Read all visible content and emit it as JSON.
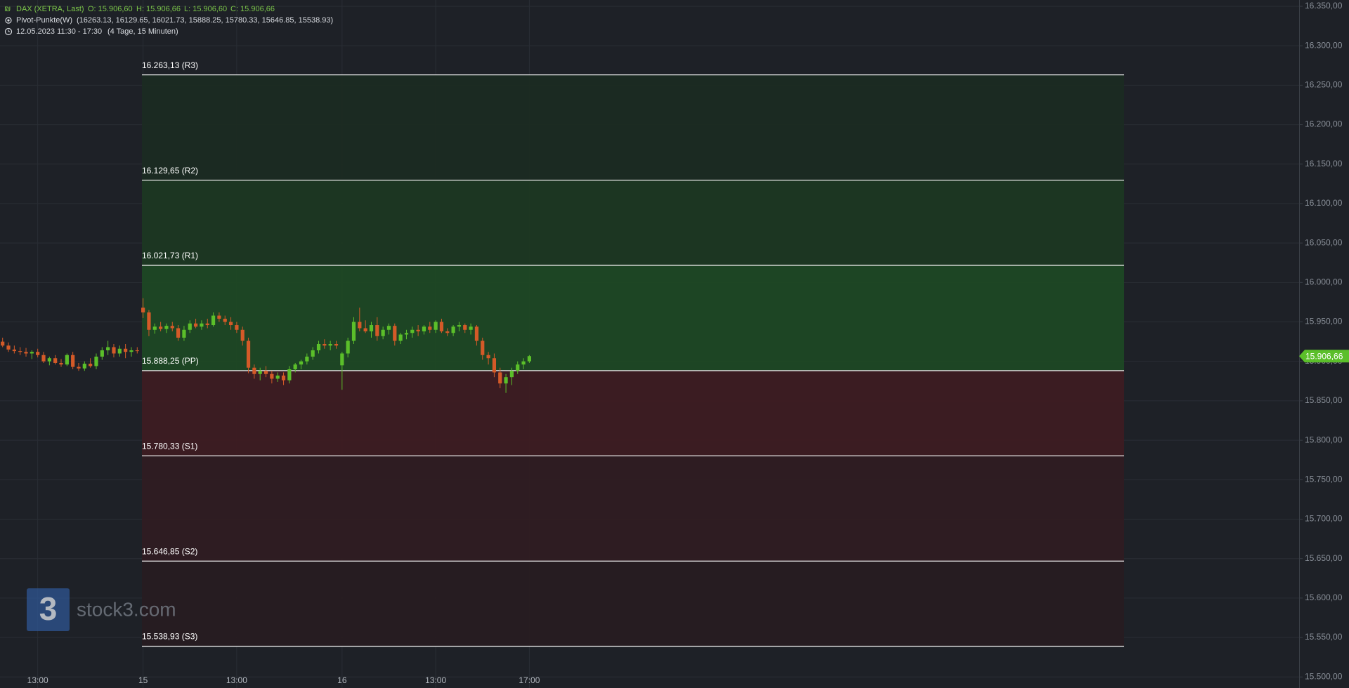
{
  "header": {
    "symbol": "DAX (XETRA, Last)",
    "ohlc": [
      "O: 15.906,60",
      "H: 15.906,66",
      "L: 15.906,60",
      "C: 15.906,66"
    ],
    "indicator": "Pivot-Punkte(W)",
    "indicator_values": "(16263.13,  16129.65,  16021.73,  15888.25,  15780.33,  15646.85,  15538.93)",
    "range": "12.05.2023 11:30 - 17:30",
    "range_info": "(4 Tage, 15 Minuten)"
  },
  "watermark": {
    "logo": "3",
    "text": "stock3.com"
  },
  "chart_data": {
    "type": "candlestick",
    "up_color": "#5bbf2a",
    "down_color": "#d45a28",
    "ylim": [
      15486,
      16358
    ],
    "yticks": [
      {
        "value": 15500,
        "label": "15.500,00"
      },
      {
        "value": 15550,
        "label": "15.550,00"
      },
      {
        "value": 15600,
        "label": "15.600,00"
      },
      {
        "value": 15650,
        "label": "15.650,00"
      },
      {
        "value": 15700,
        "label": "15.700,00"
      },
      {
        "value": 15750,
        "label": "15.750,00"
      },
      {
        "value": 15800,
        "label": "15.800,00"
      },
      {
        "value": 15850,
        "label": "15.850,00"
      },
      {
        "value": 15900,
        "label": "15.900,00"
      },
      {
        "value": 15950,
        "label": "15.950,00"
      },
      {
        "value": 16000,
        "label": "16.000,00"
      },
      {
        "value": 16050,
        "label": "16.050,00"
      },
      {
        "value": 16100,
        "label": "16.100,00"
      },
      {
        "value": 16150,
        "label": "16.150,00"
      },
      {
        "value": 16200,
        "label": "16.200,00"
      },
      {
        "value": 16250,
        "label": "16.250,00"
      },
      {
        "value": 16300,
        "label": "16.300,00"
      },
      {
        "value": 16350,
        "label": "16.350,00"
      }
    ],
    "grid": true,
    "last_price": {
      "value": 15906.66,
      "label": "15.906,66",
      "color": "#5bbf2a"
    },
    "pivots": [
      {
        "value": 16263.13,
        "label": "16.263,13 (R3)"
      },
      {
        "value": 16129.65,
        "label": "16.129,65 (R2)"
      },
      {
        "value": 16021.73,
        "label": "16.021,73 (R1)"
      },
      {
        "value": 15888.25,
        "label": "15.888,25 (PP)"
      },
      {
        "value": 15780.33,
        "label": "15.780,33 (S1)"
      },
      {
        "value": 15646.85,
        "label": "15.646,85 (S2)"
      },
      {
        "value": 15538.93,
        "label": "15.538,93 (S3)"
      }
    ],
    "zone_colors": [
      "#1b2b22",
      "#1c3822",
      "#1e4824",
      "#3d1c22",
      "#2f1c22",
      "#271c21"
    ],
    "categories": [
      null,
      null,
      null,
      null,
      null,
      null,
      "13:00",
      null,
      null,
      null,
      null,
      null,
      null,
      null,
      null,
      null,
      null,
      null,
      null,
      null,
      null,
      null,
      null,
      null,
      "15",
      null,
      null,
      null,
      null,
      null,
      null,
      null,
      null,
      null,
      null,
      null,
      null,
      null,
      null,
      null,
      "13:00",
      null,
      null,
      null,
      null,
      null,
      null,
      null,
      null,
      null,
      null,
      null,
      null,
      null,
      null,
      null,
      null,
      null,
      "16",
      null,
      null,
      null,
      null,
      null,
      null,
      null,
      null,
      null,
      null,
      null,
      null,
      null,
      null,
      null,
      "13:00",
      null,
      null,
      null,
      null,
      null,
      null,
      null,
      null,
      null,
      null,
      null,
      null,
      null,
      null,
      null,
      "17:00"
    ],
    "candles": [
      [
        15925,
        15930,
        15918,
        15920
      ],
      [
        15920,
        15924,
        15912,
        15915
      ],
      [
        15915,
        15920,
        15910,
        15913
      ],
      [
        15913,
        15918,
        15908,
        15912
      ],
      [
        15912,
        15917,
        15906,
        15910
      ],
      [
        15910,
        15914,
        15903,
        15912
      ],
      [
        15912,
        15916,
        15905,
        15908
      ],
      [
        15908,
        15912,
        15898,
        15900
      ],
      [
        15900,
        15906,
        15895,
        15904
      ],
      [
        15904,
        15908,
        15896,
        15898
      ],
      [
        15898,
        15903,
        15893,
        15896
      ],
      [
        15896,
        15910,
        15894,
        15908
      ],
      [
        15908,
        15912,
        15890,
        15893
      ],
      [
        15893,
        15898,
        15888,
        15891
      ],
      [
        15891,
        15900,
        15888,
        15897
      ],
      [
        15897,
        15904,
        15892,
        15894
      ],
      [
        15894,
        15910,
        15890,
        15906
      ],
      [
        15906,
        15918,
        15902,
        15914
      ],
      [
        15914,
        15926,
        15908,
        15918
      ],
      [
        15918,
        15922,
        15905,
        15910
      ],
      [
        15910,
        15920,
        15906,
        15916
      ],
      [
        15916,
        15922,
        15904,
        15912
      ],
      [
        15912,
        15918,
        15906,
        15914
      ],
      [
        15914,
        15918,
        15910,
        15913
      ],
      [
        15968,
        15980,
        15955,
        15962
      ],
      [
        15962,
        15965,
        15932,
        15940
      ],
      [
        15940,
        15948,
        15935,
        15944
      ],
      [
        15944,
        15950,
        15938,
        15941
      ],
      [
        15941,
        15948,
        15936,
        15945
      ],
      [
        15945,
        15950,
        15938,
        15942
      ],
      [
        15942,
        15946,
        15926,
        15930
      ],
      [
        15930,
        15945,
        15926,
        15940
      ],
      [
        15940,
        15952,
        15936,
        15948
      ],
      [
        15948,
        15954,
        15942,
        15944
      ],
      [
        15944,
        15952,
        15940,
        15948
      ],
      [
        15948,
        15954,
        15942,
        15946
      ],
      [
        15946,
        15962,
        15944,
        15958
      ],
      [
        15958,
        15962,
        15950,
        15954
      ],
      [
        15954,
        15958,
        15946,
        15950
      ],
      [
        15950,
        15956,
        15940,
        15946
      ],
      [
        15946,
        15950,
        15936,
        15940
      ],
      [
        15940,
        15944,
        15920,
        15926
      ],
      [
        15926,
        15930,
        15885,
        15892
      ],
      [
        15892,
        15896,
        15878,
        15884
      ],
      [
        15884,
        15892,
        15876,
        15888
      ],
      [
        15888,
        15894,
        15880,
        15884
      ],
      [
        15884,
        15888,
        15872,
        15878
      ],
      [
        15878,
        15886,
        15874,
        15882
      ],
      [
        15882,
        15886,
        15870,
        15876
      ],
      [
        15876,
        15894,
        15872,
        15890
      ],
      [
        15890,
        15898,
        15886,
        15896
      ],
      [
        15896,
        15902,
        15890,
        15900
      ],
      [
        15900,
        15910,
        15896,
        15906
      ],
      [
        15906,
        15918,
        15902,
        15914
      ],
      [
        15914,
        15926,
        15910,
        15922
      ],
      [
        15922,
        15928,
        15916,
        15920
      ],
      [
        15920,
        15926,
        15914,
        15922
      ],
      [
        15922,
        15926,
        15916,
        15920
      ],
      [
        15895,
        15912,
        15864,
        15910
      ],
      [
        15910,
        15930,
        15905,
        15926
      ],
      [
        15926,
        15956,
        15922,
        15950
      ],
      [
        15950,
        15968,
        15938,
        15942
      ],
      [
        15942,
        15952,
        15936,
        15938
      ],
      [
        15938,
        15950,
        15930,
        15946
      ],
      [
        15946,
        15956,
        15926,
        15932
      ],
      [
        15932,
        15944,
        15928,
        15940
      ],
      [
        15940,
        15948,
        15934,
        15945
      ],
      [
        15945,
        15948,
        15920,
        15926
      ],
      [
        15926,
        15936,
        15922,
        15934
      ],
      [
        15934,
        15940,
        15928,
        15936
      ],
      [
        15936,
        15944,
        15930,
        15940
      ],
      [
        15940,
        15946,
        15932,
        15938
      ],
      [
        15938,
        15946,
        15934,
        15944
      ],
      [
        15944,
        15950,
        15936,
        15940
      ],
      [
        15940,
        15952,
        15936,
        15950
      ],
      [
        15950,
        15954,
        15936,
        15938
      ],
      [
        15938,
        15942,
        15932,
        15936
      ],
      [
        15936,
        15946,
        15932,
        15944
      ],
      [
        15944,
        15950,
        15938,
        15946
      ],
      [
        15946,
        15948,
        15936,
        15940
      ],
      [
        15940,
        15948,
        15934,
        15944
      ],
      [
        15944,
        15946,
        15920,
        15926
      ],
      [
        15926,
        15930,
        15902,
        15908
      ],
      [
        15908,
        15912,
        15896,
        15904
      ],
      [
        15904,
        15910,
        15880,
        15886
      ],
      [
        15886,
        15892,
        15866,
        15872
      ],
      [
        15872,
        15884,
        15860,
        15880
      ],
      [
        15880,
        15892,
        15870,
        15888
      ],
      [
        15888,
        15900,
        15884,
        15896
      ],
      [
        15896,
        15904,
        15890,
        15900
      ],
      [
        15900,
        15908,
        15898,
        15906.66
      ]
    ]
  }
}
